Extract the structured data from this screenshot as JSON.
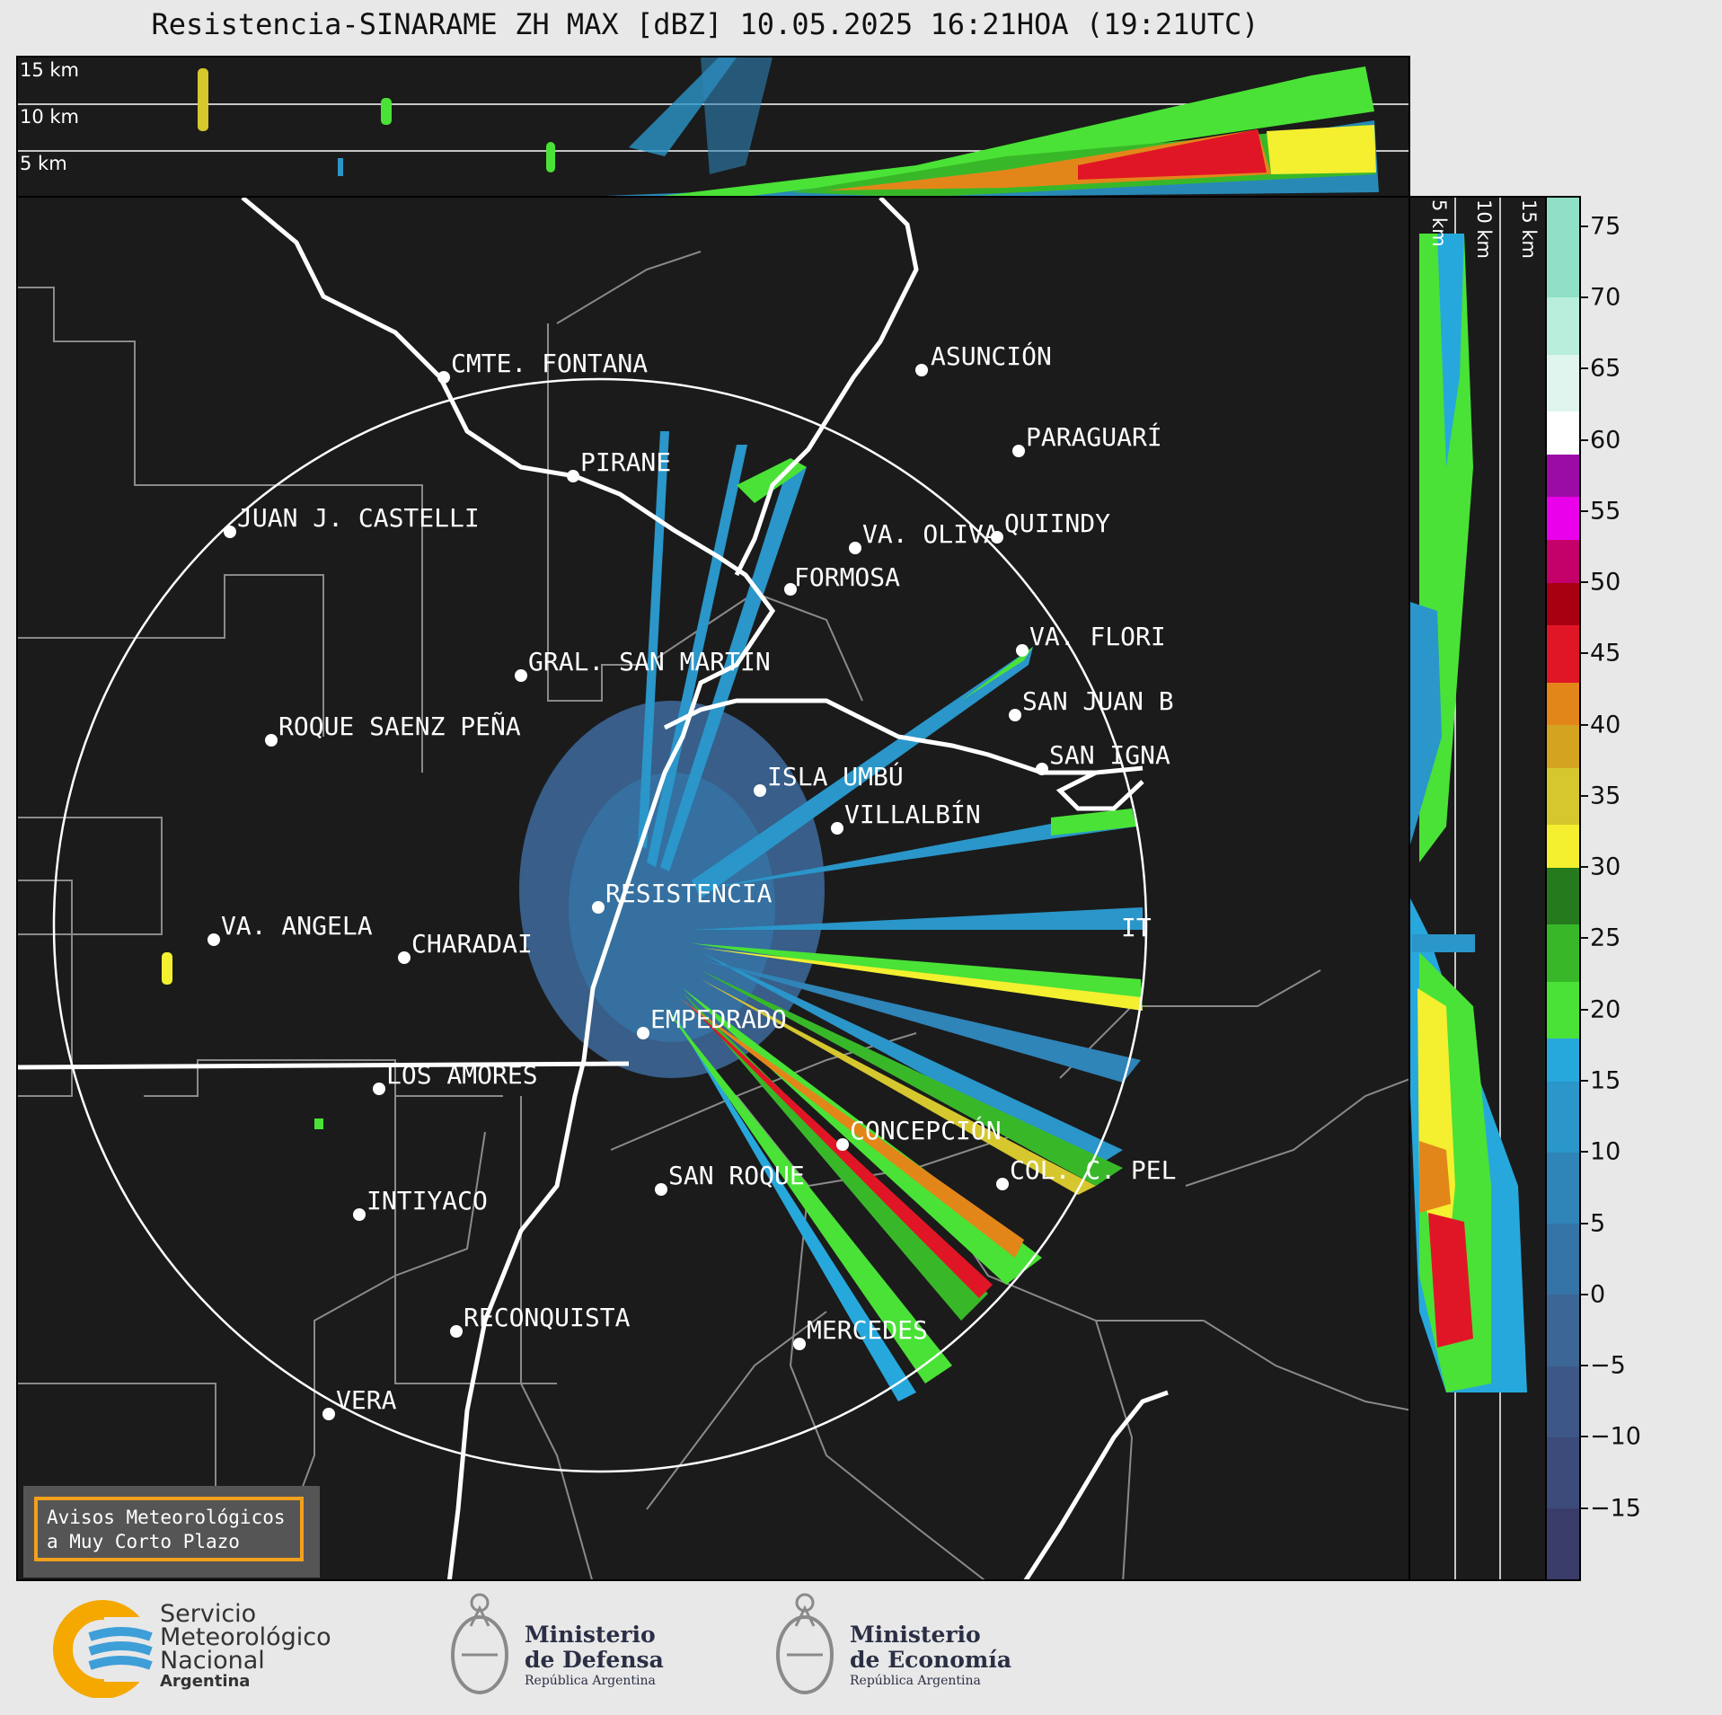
{
  "title": "Resistencia-SINARAME ZH MAX [dBZ] 10.05.2025 16:21HOA (19:21UTC)",
  "top_altitudes": [
    "15 km",
    "10 km",
    "5 km"
  ],
  "side_altitudes": [
    "5 km",
    "10 km",
    "15 km"
  ],
  "colorbar": {
    "ticks": [
      "75",
      "70",
      "65",
      "60",
      "55",
      "50",
      "45",
      "40",
      "35",
      "30",
      "25",
      "20",
      "15",
      "10",
      "5",
      "0",
      "−5",
      "−10",
      "−15"
    ],
    "range": [
      -20,
      77
    ],
    "bands": [
      {
        "from": -20,
        "to": -15,
        "color": "#3a3d6a"
      },
      {
        "from": -15,
        "to": -10,
        "color": "#3c4b7a"
      },
      {
        "from": -10,
        "to": -5,
        "color": "#3d5888"
      },
      {
        "from": -5,
        "to": 0,
        "color": "#3c6696"
      },
      {
        "from": 0,
        "to": 5,
        "color": "#3574a6"
      },
      {
        "from": 5,
        "to": 10,
        "color": "#2f84b8"
      },
      {
        "from": 10,
        "to": 15,
        "color": "#2a96c9"
      },
      {
        "from": 15,
        "to": 18,
        "color": "#27a8dc"
      },
      {
        "from": 18,
        "to": 22,
        "color": "#4ae236"
      },
      {
        "from": 22,
        "to": 26,
        "color": "#38b829"
      },
      {
        "from": 26,
        "to": 30,
        "color": "#247a1c"
      },
      {
        "from": 30,
        "to": 33,
        "color": "#f4ef2f"
      },
      {
        "from": 33,
        "to": 37,
        "color": "#d6c72e"
      },
      {
        "from": 37,
        "to": 40,
        "color": "#d4a320"
      },
      {
        "from": 40,
        "to": 43,
        "color": "#e3861a"
      },
      {
        "from": 43,
        "to": 47,
        "color": "#e01626"
      },
      {
        "from": 47,
        "to": 50,
        "color": "#a80010"
      },
      {
        "from": 50,
        "to": 53,
        "color": "#c4006a"
      },
      {
        "from": 53,
        "to": 56,
        "color": "#ea00ea"
      },
      {
        "from": 56,
        "to": 59,
        "color": "#9b0ba6"
      },
      {
        "from": 59,
        "to": 62,
        "color": "#ffffff"
      },
      {
        "from": 62,
        "to": 66,
        "color": "#dff5ee"
      },
      {
        "from": 66,
        "to": 70,
        "color": "#b8eedb"
      },
      {
        "from": 70,
        "to": 77,
        "color": "#8fe0c6"
      }
    ]
  },
  "cities": [
    {
      "name": "CMTE. FONTANA"
    },
    {
      "name": "ASUNCIÓN"
    },
    {
      "name": "PARAGUARÍ"
    },
    {
      "name": "PIRANE"
    },
    {
      "name": "JUAN J. CASTELLI"
    },
    {
      "name": "VA. OLIVA"
    },
    {
      "name": "QUIINDY"
    },
    {
      "name": "FORMOSA"
    },
    {
      "name": "VA. FLORI"
    },
    {
      "name": "GRAL. SAN MARTIN"
    },
    {
      "name": "SAN JUAN B"
    },
    {
      "name": "ROQUE SAENZ PEÑA"
    },
    {
      "name": "SAN IGNA"
    },
    {
      "name": "ISLA UMBÚ"
    },
    {
      "name": "VILLALBÍN"
    },
    {
      "name": "RESISTENCIA"
    },
    {
      "name": "IT"
    },
    {
      "name": "VA. ANGELA"
    },
    {
      "name": "CHARADAI"
    },
    {
      "name": "EMPEDRADO"
    },
    {
      "name": "LOS AMORES"
    },
    {
      "name": "CONCEPCIÓN"
    },
    {
      "name": "COL. C. PEL"
    },
    {
      "name": "SAN ROQUE"
    },
    {
      "name": "INTIYACO"
    },
    {
      "name": "RECONQUISTA"
    },
    {
      "name": "MERCEDES"
    },
    {
      "name": "VERA"
    }
  ],
  "warning": {
    "line1": "Avisos Meteorológicos",
    "line2": "a Muy Corto Plazo"
  },
  "footer": {
    "smn": {
      "line1": "Servicio",
      "line2": "Meteorológico",
      "line3": "Nacional",
      "line4": "Argentina"
    },
    "defensa": {
      "line1": "Ministerio",
      "line2": "de Defensa",
      "line3": "República Argentina"
    },
    "economia": {
      "line1": "Ministerio",
      "line2": "de Economía",
      "line3": "República Argentina"
    }
  }
}
